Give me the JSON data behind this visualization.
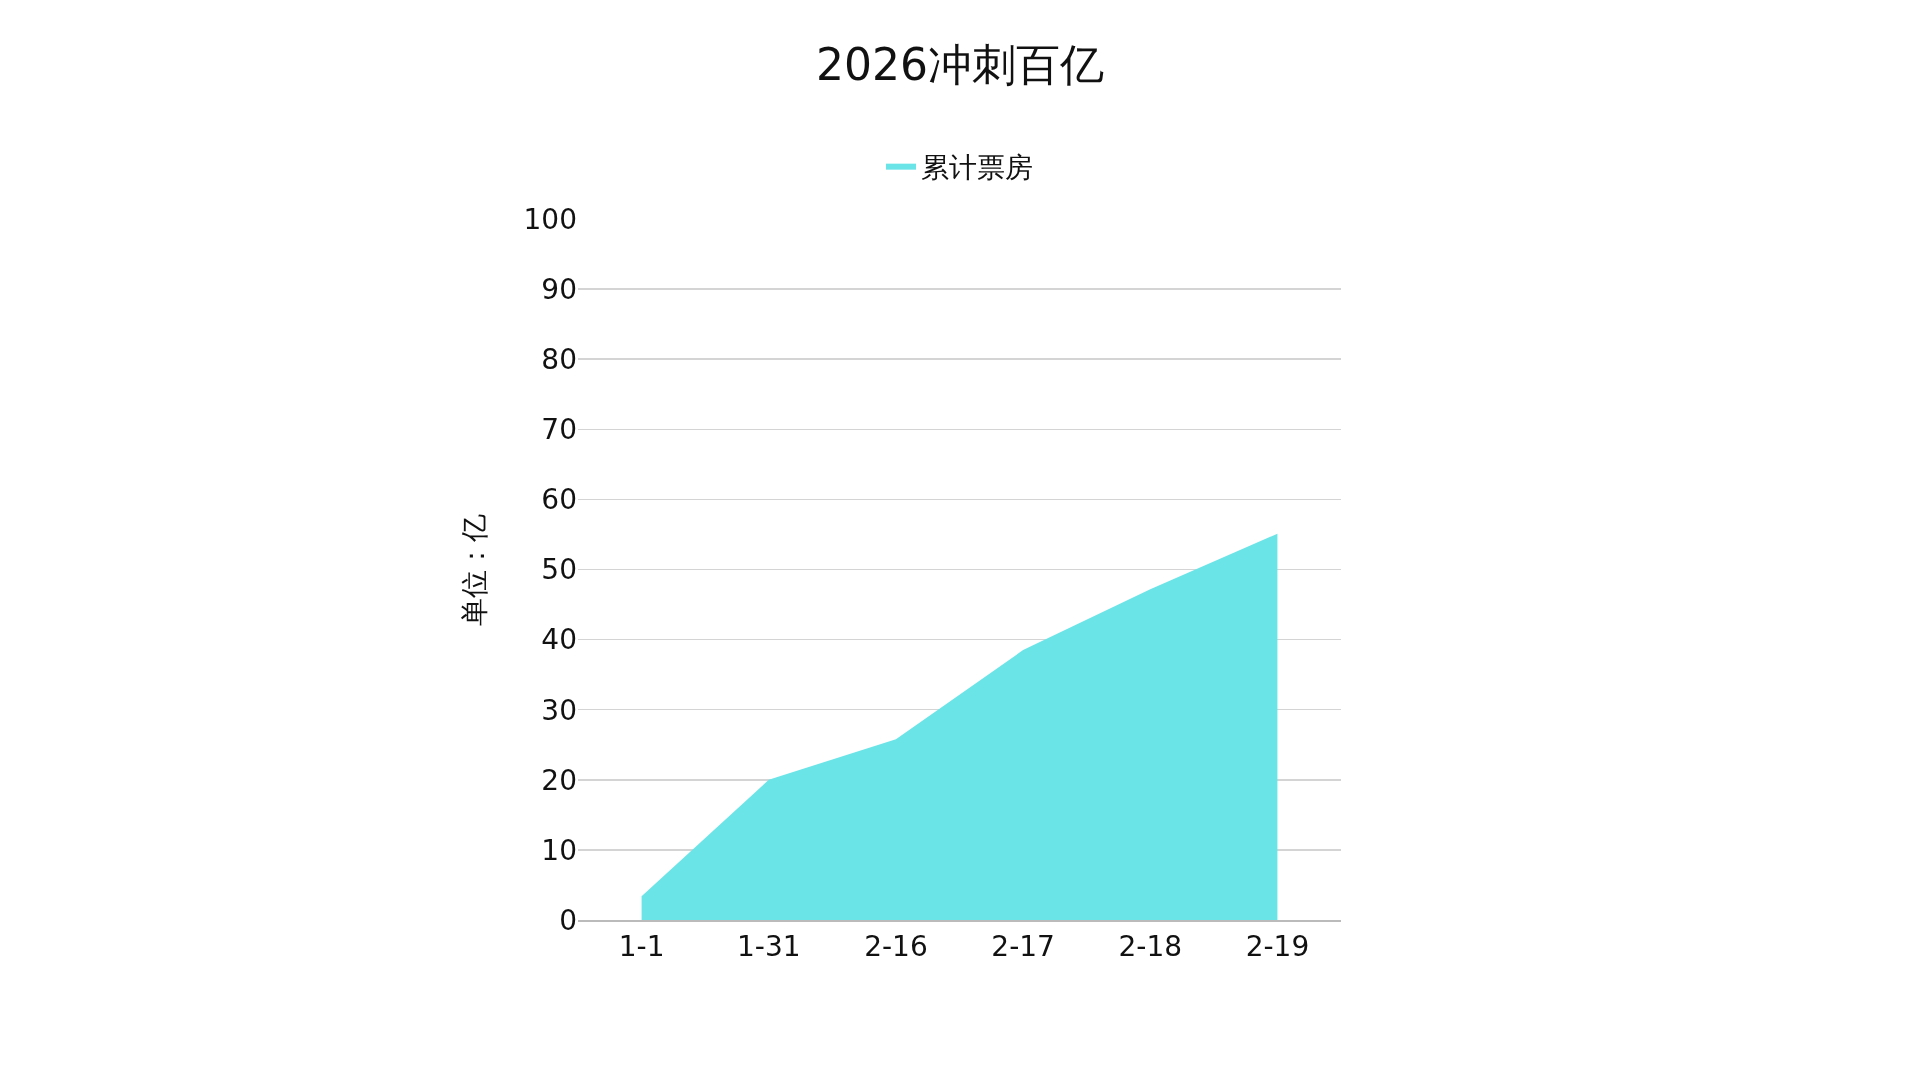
{
  "chart_data": {
    "type": "area",
    "title": "2026冲刺百亿",
    "ylabel": "单位：亿",
    "categories": [
      "1-1",
      "1-31",
      "2-16",
      "2-17",
      "2-18",
      "2-19"
    ],
    "series": [
      {
        "name": "累计票房",
        "color": "#6be4e8",
        "values": [
          3.4,
          20,
          25.8,
          38.5,
          47.2,
          55.1
        ]
      }
    ],
    "ylim": [
      0,
      100
    ],
    "yticks": [
      0,
      10,
      20,
      30,
      40,
      50,
      60,
      70,
      80,
      90,
      100
    ],
    "grid": "y",
    "legend": "top"
  }
}
